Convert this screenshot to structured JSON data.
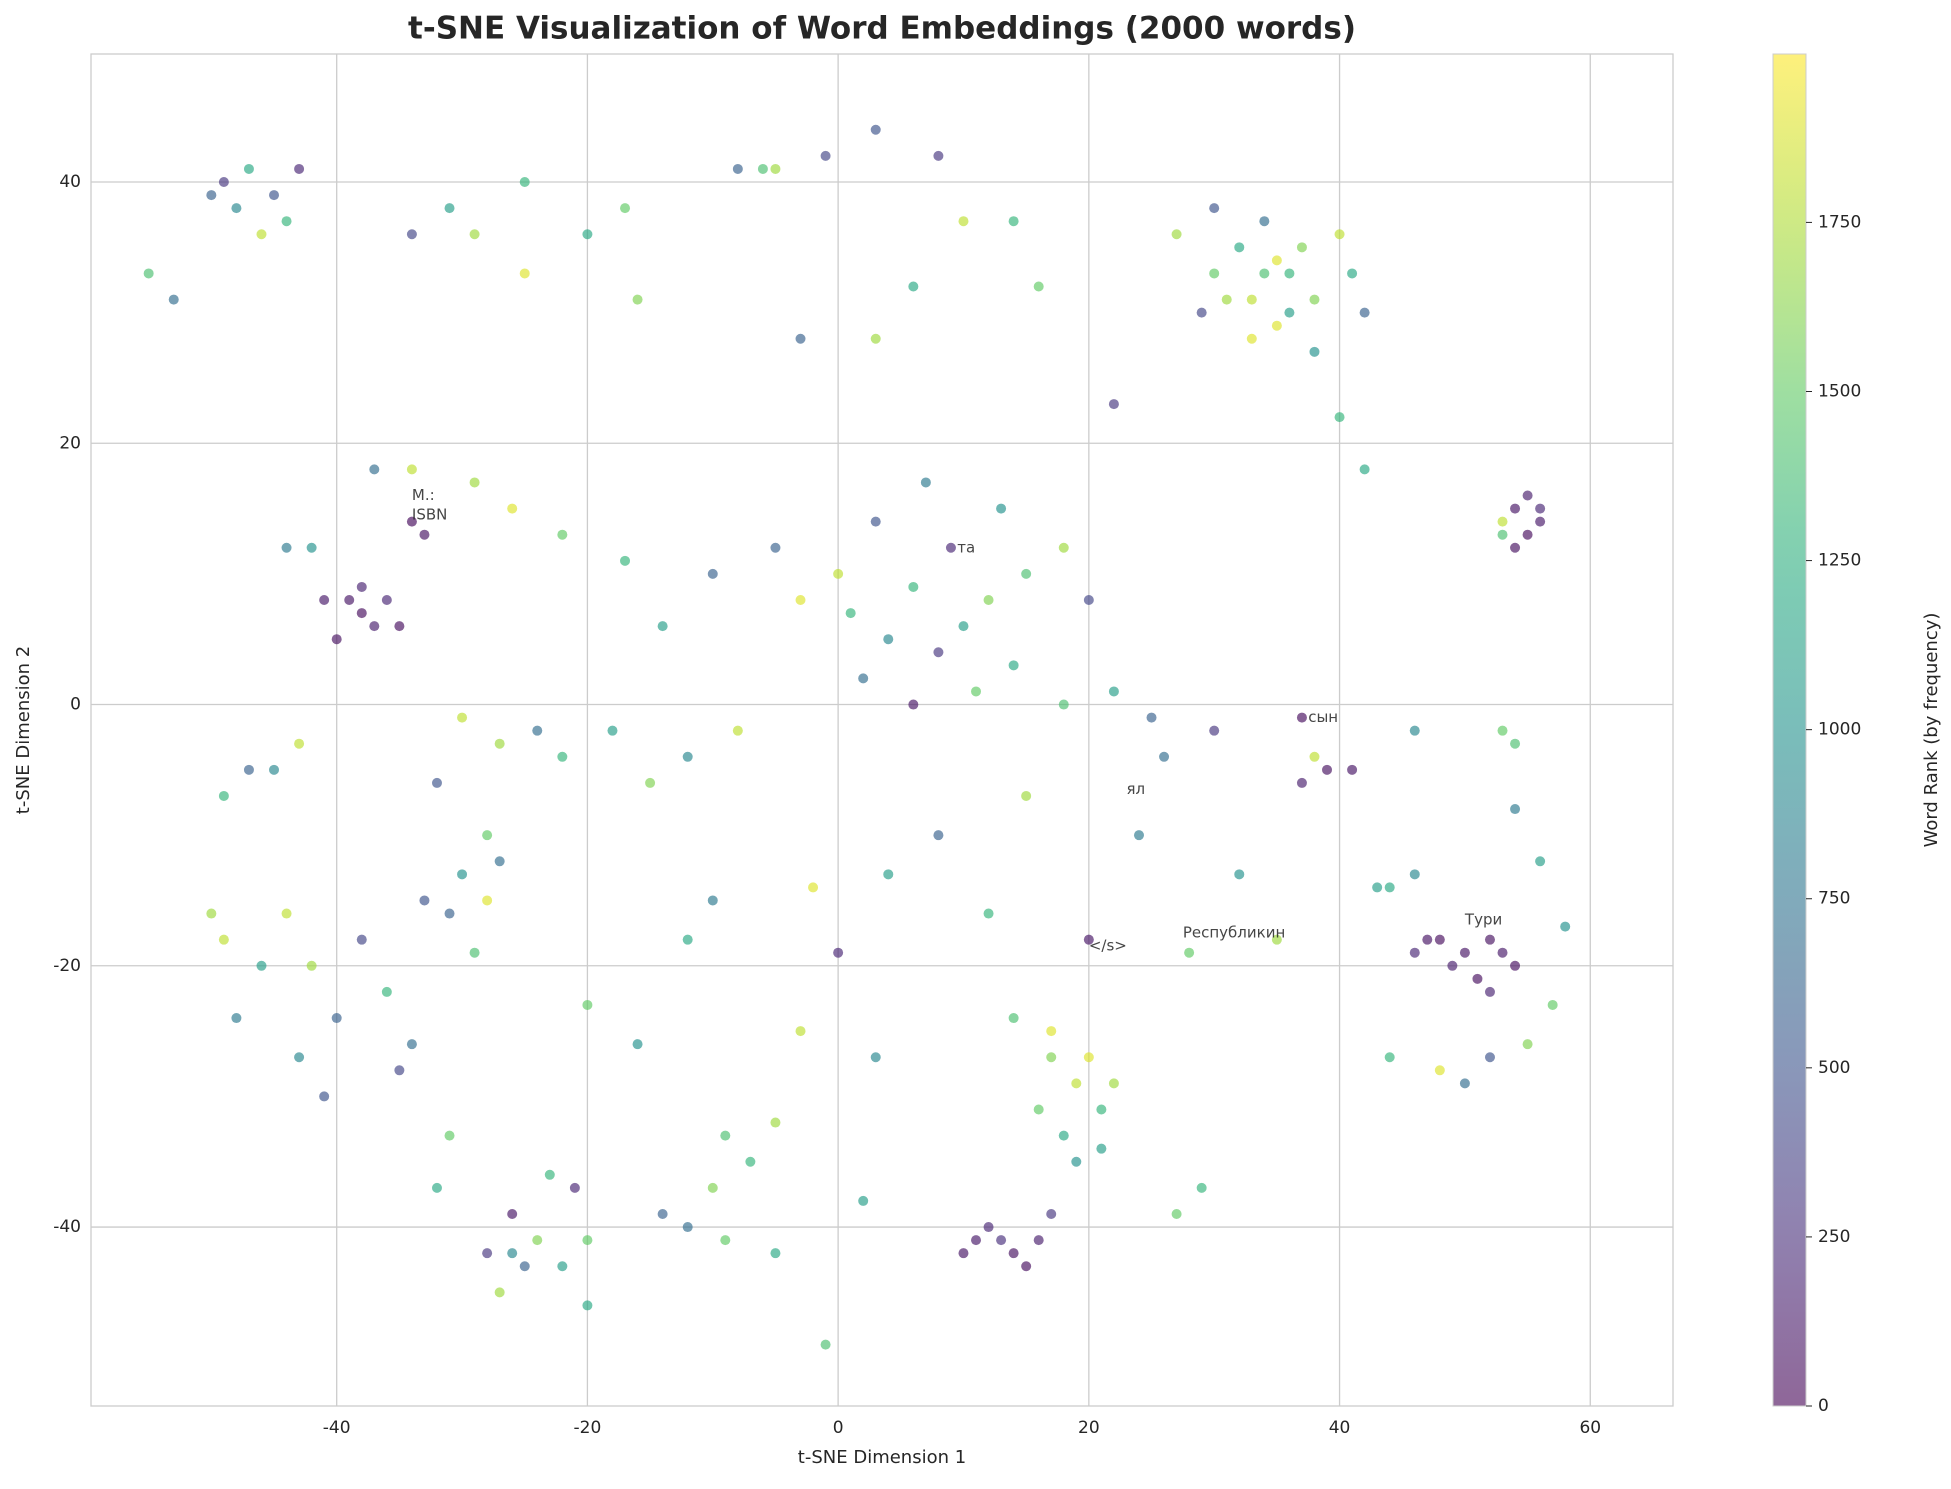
{
  "chart_data": {
    "type": "scatter",
    "title": "t-SNE Visualization of Word Embeddings (2000 words)",
    "x_label": "t-SNE Dimension 1",
    "y_label": "t-SNE Dimension 2",
    "colorbar_label": "Word Rank (by frequency)",
    "colormap": "viridis",
    "grid": true,
    "xlim": [
      -59.6,
      66.6
    ],
    "ylim": [
      -53.7,
      49.8
    ],
    "xticks": [
      -40,
      -20,
      0,
      20,
      40,
      60
    ],
    "yticks": [
      -40,
      -20,
      0,
      20,
      40
    ],
    "clim": [
      0,
      1999
    ],
    "cticks": [
      0,
      250,
      500,
      750,
      1000,
      1250,
      1500,
      1750
    ],
    "x": [
      -49,
      -47,
      -45,
      -44,
      -48,
      -46,
      -43,
      -50,
      -53,
      -55,
      -34,
      -31,
      -29,
      -25,
      -25,
      -20,
      -17,
      -8,
      -5,
      -1,
      3,
      8,
      -6,
      10,
      14,
      16,
      6,
      3,
      -3,
      -16,
      30,
      33,
      35,
      32,
      36,
      34,
      29,
      38,
      41,
      40,
      31,
      34,
      36,
      33,
      42,
      38,
      27,
      30,
      37,
      35,
      54,
      55,
      56,
      53,
      55,
      54,
      56,
      53,
      40,
      42,
      0,
      3,
      6,
      9,
      12,
      4,
      8,
      10,
      15,
      2,
      6,
      11,
      14,
      -3,
      -5,
      7,
      13,
      18,
      20,
      1,
      -10,
      -14,
      -17,
      -22,
      -26,
      -29,
      -34,
      -37,
      -42,
      -44,
      -38,
      -39,
      -37,
      -40,
      -36,
      -41,
      -35,
      -38,
      -34,
      -33,
      -30,
      -27,
      -24,
      -32,
      -28,
      -22,
      -18,
      -15,
      -12,
      -8,
      -42,
      -44,
      -40,
      -38,
      -36,
      -46,
      -34,
      -43,
      -41,
      -48,
      -30,
      -28,
      -31,
      -27,
      -33,
      -29,
      -35,
      -31,
      -32,
      -28,
      -26,
      -24,
      -22,
      -25,
      -21,
      -23,
      -20,
      -27,
      -20,
      -26,
      -9,
      -7,
      -5,
      -12,
      -9,
      -5,
      -14,
      -10,
      -1,
      2,
      17,
      19,
      21,
      18,
      20,
      22,
      16,
      19,
      17,
      21,
      10,
      12,
      14,
      16,
      15,
      11,
      13,
      17,
      29,
      27,
      48,
      50,
      52,
      49,
      51,
      53,
      47,
      46,
      54,
      52,
      44,
      46,
      56,
      58,
      57,
      55,
      48,
      50,
      44,
      52,
      37,
      39,
      41,
      37,
      38,
      43,
      35,
      28,
      20,
      0,
      -2,
      4,
      8,
      12,
      14,
      24,
      26,
      30,
      32,
      22,
      22,
      25,
      18,
      15,
      -3,
      3,
      -16,
      -20,
      -10,
      -12,
      -45,
      -43,
      -47,
      -49,
      54,
      54,
      53,
      46,
      -50,
      -49
    ],
    "y": [
      40,
      41,
      39,
      37,
      38,
      36,
      41,
      39,
      31,
      33,
      36,
      38,
      36,
      33,
      40,
      36,
      38,
      41,
      41,
      42,
      44,
      42,
      41,
      37,
      37,
      32,
      32,
      28,
      28,
      31,
      33,
      31,
      29,
      35,
      33,
      37,
      30,
      31,
      33,
      36,
      31,
      33,
      30,
      28,
      30,
      27,
      36,
      38,
      35,
      34,
      15,
      13,
      15,
      14,
      16,
      12,
      14,
      13,
      22,
      18,
      10,
      14,
      9,
      12,
      8,
      5,
      4,
      6,
      10,
      2,
      0,
      1,
      3,
      8,
      12,
      17,
      15,
      12,
      8,
      7,
      10,
      6,
      11,
      13,
      15,
      17,
      18,
      18,
      12,
      12,
      7,
      8,
      6,
      5,
      8,
      8,
      6,
      9,
      14,
      13,
      -1,
      -3,
      -2,
      -6,
      -10,
      -4,
      -2,
      -6,
      -4,
      -2,
      -20,
      -16,
      -24,
      -18,
      -22,
      -20,
      -26,
      -27,
      -30,
      -24,
      -13,
      -15,
      -16,
      -12,
      -15,
      -19,
      -28,
      -33,
      -37,
      -42,
      -39,
      -41,
      -43,
      -43,
      -37,
      -36,
      -41,
      -45,
      -46,
      -42,
      -33,
      -35,
      -32,
      -40,
      -41,
      -42,
      -39,
      -37,
      -49,
      -38,
      -27,
      -29,
      -31,
      -33,
      -27,
      -29,
      -31,
      -35,
      -25,
      -34,
      -42,
      -40,
      -42,
      -41,
      -43,
      -41,
      -41,
      -39,
      -37,
      -39,
      -18,
      -19,
      -18,
      -20,
      -21,
      -19,
      -18,
      -19,
      -20,
      -22,
      -14,
      -13,
      -12,
      -17,
      -23,
      -26,
      -28,
      -29,
      -27,
      -27,
      -6,
      -5,
      -5,
      -1,
      -4,
      -14,
      -18,
      -19,
      -18,
      -19,
      -14,
      -13,
      -10,
      -16,
      -24,
      -10,
      -4,
      -2,
      -13,
      23,
      1,
      -1,
      0,
      -7,
      -25,
      -27,
      -26,
      -23,
      -15,
      -18,
      -5,
      -3,
      -5,
      -7,
      -3,
      -8,
      -2,
      -2,
      -16,
      -18
    ],
    "color_values": [
      300,
      1200,
      500,
      1300,
      900,
      1800,
      200,
      600,
      700,
      1400,
      400,
      1100,
      1700,
      1900,
      1300,
      1200,
      1500,
      600,
      1700,
      400,
      500,
      300,
      1400,
      1800,
      1300,
      1500,
      1200,
      1700,
      600,
      1600,
      1500,
      1800,
      1900,
      1200,
      1300,
      700,
      400,
      1600,
      1200,
      1800,
      1700,
      1400,
      1100,
      1900,
      600,
      1000,
      1700,
      500,
      1600,
      1900,
      100,
      50,
      200,
      1800,
      150,
      80,
      120,
      1400,
      1300,
      1200,
      1800,
      500,
      1300,
      200,
      1600,
      900,
      300,
      1100,
      1400,
      700,
      100,
      1500,
      1200,
      1900,
      600,
      800,
      1000,
      1700,
      400,
      1300,
      600,
      1100,
      1300,
      1500,
      1900,
      1700,
      1800,
      700,
      1000,
      800,
      50,
      100,
      150,
      80,
      200,
      120,
      60,
      180,
      40,
      90,
      1800,
      1700,
      700,
      500,
      1500,
      1300,
      1100,
      1600,
      900,
      1800,
      1700,
      1800,
      600,
      400,
      1300,
      1100,
      700,
      900,
      500,
      800,
      1000,
      1900,
      600,
      700,
      500,
      1400,
      400,
      1500,
      1200,
      300,
      100,
      1600,
      1100,
      600,
      200,
      1300,
      1500,
      1700,
      1200,
      900,
      1400,
      1300,
      1700,
      700,
      1500,
      1200,
      600,
      1600,
      1400,
      1100,
      1600,
      1800,
      1300,
      1200,
      1900,
      1700,
      1500,
      1000,
      1900,
      1100,
      100,
      200,
      80,
      150,
      60,
      120,
      250,
      300,
      1300,
      1500,
      50,
      100,
      80,
      150,
      60,
      120,
      90,
      200,
      70,
      180,
      1200,
      900,
      1100,
      1000,
      1500,
      1600,
      1900,
      700,
      1300,
      500,
      150,
      80,
      100,
      50,
      1800,
      1100,
      1700,
      1500,
      100,
      200,
      1900,
      1100,
      600,
      1300,
      1400,
      800,
      700,
      300,
      1000,
      300,
      1100,
      600,
      1400,
      1700,
      1800,
      900,
      1000,
      1500,
      800,
      1200,
      900,
      1800,
      600,
      1300,
      1400,
      800,
      1500,
      900,
      1700,
      1800
    ],
    "annotations": [
      {
        "text": "M.:",
        "x": -34,
        "y": 16
      },
      {
        "text": "ISBN",
        "x": -34,
        "y": 14.5
      },
      {
        "text": "сын",
        "x": 37.5,
        "y": -1
      },
      {
        "text": "Республикин",
        "x": 27.5,
        "y": -17.5
      },
      {
        "text": "</s>",
        "x": 20,
        "y": -18.5
      },
      {
        "text": "Тури",
        "x": 50,
        "y": -16.5
      },
      {
        "text": "та",
        "x": 9.5,
        "y": 12
      },
      {
        "text": "ял",
        "x": 23,
        "y": -6.5
      }
    ]
  }
}
